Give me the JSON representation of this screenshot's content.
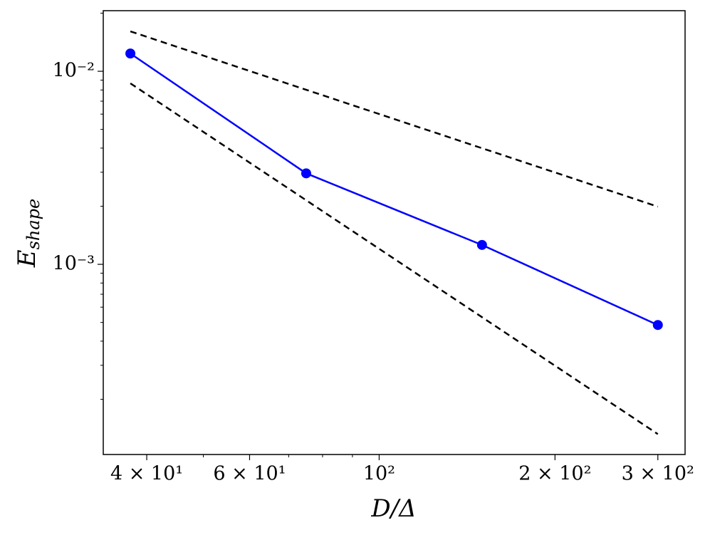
{
  "chart_data": {
    "type": "line",
    "xlabel": "D/Δ",
    "ylabel": [
      "E",
      "shape"
    ],
    "xscale": "log",
    "yscale": "log",
    "xlim": [
      33.7,
      334
    ],
    "ylim": [
      0.0001035,
      0.0206
    ],
    "xticks": [
      {
        "value": 40,
        "label": "4 × 10¹"
      },
      {
        "value": 60,
        "label": "6 × 10¹"
      },
      {
        "value": 100,
        "label": "10²"
      },
      {
        "value": 200,
        "label": "2 × 10²"
      },
      {
        "value": 300,
        "label": "3 × 10²"
      }
    ],
    "xminorticks": [
      50,
      70,
      80,
      90
    ],
    "yticks": [
      {
        "value": 0.001,
        "label": "10⁻³"
      },
      {
        "value": 0.01,
        "label": "10⁻²"
      }
    ],
    "yminorticks": [
      0.0002,
      0.0003,
      0.0004,
      0.0005,
      0.0006,
      0.0007,
      0.0008,
      0.0009,
      0.002,
      0.003,
      0.004,
      0.005,
      0.006,
      0.007,
      0.008,
      0.009,
      0.02
    ],
    "series": [
      {
        "color": "#0000ff",
        "markers": true,
        "dashed": false,
        "x": [
          37.5,
          75,
          150,
          300
        ],
        "values": [
          0.01236,
          0.00296,
          0.00126,
          0.000485
        ]
      },
      {
        "color": "#000000",
        "markers": false,
        "dashed": true,
        "x": [
          37.5,
          300
        ],
        "values": [
          0.0161,
          0.00199
        ]
      },
      {
        "color": "#000000",
        "markers": false,
        "dashed": true,
        "x": [
          37.5,
          300
        ],
        "values": [
          0.00866,
          0.000132
        ]
      }
    ]
  }
}
